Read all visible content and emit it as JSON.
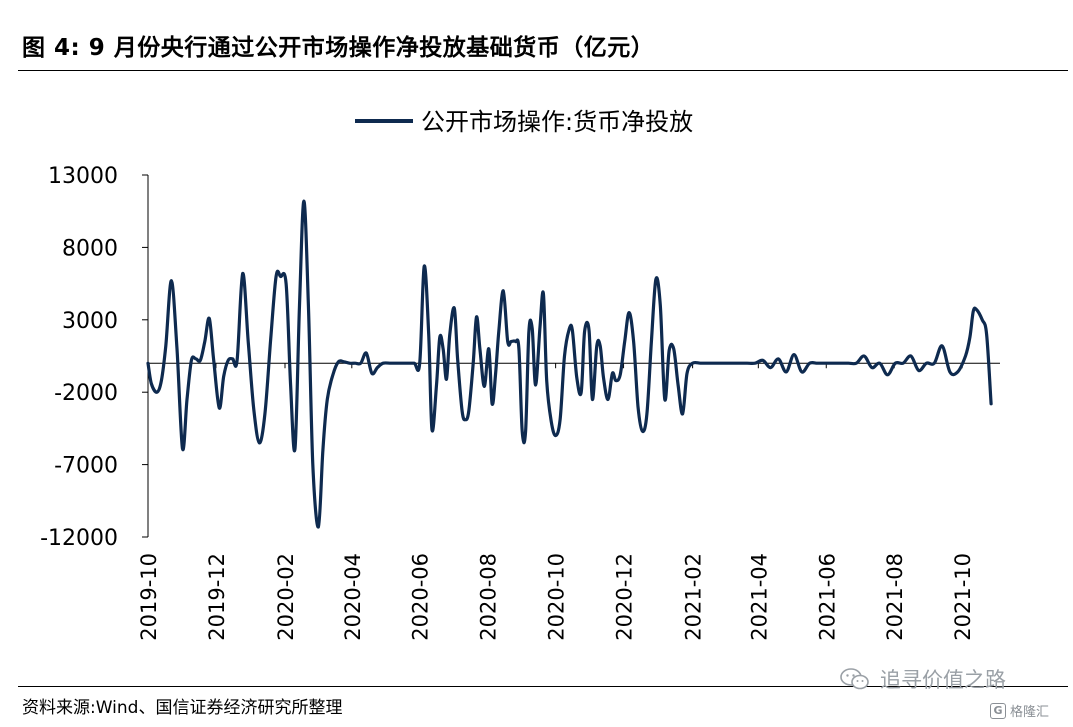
{
  "figure": {
    "title": "图 4:  9 月份央行通过公开市场操作净投放基础货币（亿元）",
    "source": "资料来源:Wind、国信证券经济研究所整理"
  },
  "watermark": {
    "text": "追寻价值之路",
    "icon": "wechat-icon"
  },
  "logo": {
    "text": "格隆汇",
    "icon": "logo-icon"
  },
  "chart_data": {
    "type": "line",
    "title": "",
    "xlabel": "",
    "ylabel": "",
    "ylim": [
      -12000,
      13000
    ],
    "yticks": [
      13000,
      8000,
      3000,
      -2000,
      -7000,
      -12000
    ],
    "x_tick_labels": [
      "2019-10",
      "2019-12",
      "2020-02",
      "2020-04",
      "2020-06",
      "2020-08",
      "2020-10",
      "2020-12",
      "2021-02",
      "2021-04",
      "2021-06",
      "2021-08",
      "2021-10"
    ],
    "legend_position": "top-center",
    "grid": false,
    "series": [
      {
        "name": "公开市场操作:货币净投放",
        "color": "#0e2a4f",
        "points": [
          [
            "2019-10-01",
            0
          ],
          [
            "2019-10-04",
            -1400
          ],
          [
            "2019-10-09",
            -2000
          ],
          [
            "2019-10-13",
            -1200
          ],
          [
            "2019-10-17",
            1200
          ],
          [
            "2019-10-22",
            5700
          ],
          [
            "2019-10-27",
            1000
          ],
          [
            "2019-11-01",
            -5900
          ],
          [
            "2019-11-05",
            -2500
          ],
          [
            "2019-11-09",
            200
          ],
          [
            "2019-11-13",
            300
          ],
          [
            "2019-11-17",
            200
          ],
          [
            "2019-11-21",
            1500
          ],
          [
            "2019-11-25",
            3100
          ],
          [
            "2019-11-29",
            200
          ],
          [
            "2019-12-04",
            -3100
          ],
          [
            "2019-12-08",
            -900
          ],
          [
            "2019-12-12",
            200
          ],
          [
            "2019-12-16",
            300
          ],
          [
            "2019-12-20",
            200
          ],
          [
            "2019-12-25",
            6200
          ],
          [
            "2019-12-30",
            1500
          ],
          [
            "2020-01-04",
            -3200
          ],
          [
            "2020-01-09",
            -5500
          ],
          [
            "2020-01-14",
            -3500
          ],
          [
            "2020-01-19",
            1500
          ],
          [
            "2020-01-24",
            6000
          ],
          [
            "2020-01-28",
            6000
          ],
          [
            "2020-02-02",
            5500
          ],
          [
            "2020-02-06",
            -1500
          ],
          [
            "2020-02-10",
            -5900
          ],
          [
            "2020-02-14",
            4000
          ],
          [
            "2020-02-18",
            11200
          ],
          [
            "2020-02-22",
            4000
          ],
          [
            "2020-02-26",
            -7000
          ],
          [
            "2020-03-02",
            -11300
          ],
          [
            "2020-03-06",
            -6000
          ],
          [
            "2020-03-10",
            -2500
          ],
          [
            "2020-03-15",
            -800
          ],
          [
            "2020-03-20",
            100
          ],
          [
            "2020-03-25",
            100
          ],
          [
            "2020-03-30",
            0
          ],
          [
            "2020-04-04",
            0
          ],
          [
            "2020-04-09",
            0
          ],
          [
            "2020-04-14",
            700
          ],
          [
            "2020-04-19",
            -700
          ],
          [
            "2020-04-24",
            -300
          ],
          [
            "2020-04-29",
            0
          ],
          [
            "2020-05-06",
            0
          ],
          [
            "2020-05-13",
            0
          ],
          [
            "2020-05-20",
            0
          ],
          [
            "2020-05-27",
            0
          ],
          [
            "2020-06-01",
            0
          ],
          [
            "2020-06-05",
            6700
          ],
          [
            "2020-06-09",
            2000
          ],
          [
            "2020-06-12",
            -4600
          ],
          [
            "2020-06-16",
            -1500
          ],
          [
            "2020-06-19",
            1800
          ],
          [
            "2020-06-22",
            1000
          ],
          [
            "2020-06-25",
            -1100
          ],
          [
            "2020-06-28",
            2000
          ],
          [
            "2020-07-02",
            3800
          ],
          [
            "2020-07-05",
            300
          ],
          [
            "2020-07-09",
            -3300
          ],
          [
            "2020-07-12",
            -3900
          ],
          [
            "2020-07-15",
            -3300
          ],
          [
            "2020-07-19",
            0
          ],
          [
            "2020-07-22",
            3200
          ],
          [
            "2020-07-25",
            1000
          ],
          [
            "2020-07-29",
            -1600
          ],
          [
            "2020-08-02",
            1000
          ],
          [
            "2020-08-05",
            -2800
          ],
          [
            "2020-08-08",
            -800
          ],
          [
            "2020-08-11",
            2200
          ],
          [
            "2020-08-15",
            5000
          ],
          [
            "2020-08-19",
            1500
          ],
          [
            "2020-08-22",
            1500
          ],
          [
            "2020-08-26",
            1500
          ],
          [
            "2020-08-29",
            1000
          ],
          [
            "2020-09-01",
            -4700
          ],
          [
            "2020-09-04",
            -4700
          ],
          [
            "2020-09-07",
            2200
          ],
          [
            "2020-09-10",
            2400
          ],
          [
            "2020-09-13",
            -1500
          ],
          [
            "2020-09-17",
            2500
          ],
          [
            "2020-09-20",
            4800
          ],
          [
            "2020-09-23",
            -1200
          ],
          [
            "2020-09-27",
            -4000
          ],
          [
            "2020-10-01",
            -5000
          ],
          [
            "2020-10-05",
            -3900
          ],
          [
            "2020-10-09",
            500
          ],
          [
            "2020-10-13",
            2300
          ],
          [
            "2020-10-16",
            2300
          ],
          [
            "2020-10-20",
            -1000
          ],
          [
            "2020-10-24",
            -2000
          ],
          [
            "2020-10-27",
            2200
          ],
          [
            "2020-10-31",
            2300
          ],
          [
            "2020-11-03",
            -2500
          ],
          [
            "2020-11-07",
            1200
          ],
          [
            "2020-11-10",
            1200
          ],
          [
            "2020-11-13",
            -1000
          ],
          [
            "2020-11-17",
            -2500
          ],
          [
            "2020-11-21",
            -700
          ],
          [
            "2020-11-24",
            -1200
          ],
          [
            "2020-11-28",
            -800
          ],
          [
            "2020-12-02",
            1500
          ],
          [
            "2020-12-06",
            3500
          ],
          [
            "2020-12-10",
            1500
          ],
          [
            "2020-12-14",
            -3000
          ],
          [
            "2020-12-18",
            -4700
          ],
          [
            "2020-12-22",
            -3500
          ],
          [
            "2020-12-26",
            1500
          ],
          [
            "2020-12-30",
            5800
          ],
          [
            "2021-01-03",
            4000
          ],
          [
            "2021-01-07",
            -2500
          ],
          [
            "2021-01-11",
            900
          ],
          [
            "2021-01-15",
            1000
          ],
          [
            "2021-01-19",
            -1500
          ],
          [
            "2021-01-23",
            -3500
          ],
          [
            "2021-01-27",
            -700
          ],
          [
            "2021-02-01",
            0
          ],
          [
            "2021-02-08",
            0
          ],
          [
            "2021-02-15",
            0
          ],
          [
            "2021-02-22",
            0
          ],
          [
            "2021-03-01",
            0
          ],
          [
            "2021-03-08",
            0
          ],
          [
            "2021-03-15",
            0
          ],
          [
            "2021-03-22",
            0
          ],
          [
            "2021-03-29",
            0
          ],
          [
            "2021-04-05",
            200
          ],
          [
            "2021-04-12",
            -300
          ],
          [
            "2021-04-19",
            300
          ],
          [
            "2021-04-26",
            -600
          ],
          [
            "2021-05-03",
            600
          ],
          [
            "2021-05-10",
            -600
          ],
          [
            "2021-05-17",
            0
          ],
          [
            "2021-05-24",
            0
          ],
          [
            "2021-05-31",
            0
          ],
          [
            "2021-06-07",
            0
          ],
          [
            "2021-06-14",
            0
          ],
          [
            "2021-06-21",
            0
          ],
          [
            "2021-06-28",
            0
          ],
          [
            "2021-07-05",
            500
          ],
          [
            "2021-07-12",
            -300
          ],
          [
            "2021-07-19",
            0
          ],
          [
            "2021-07-26",
            -800
          ],
          [
            "2021-08-02",
            0
          ],
          [
            "2021-08-09",
            0
          ],
          [
            "2021-08-16",
            500
          ],
          [
            "2021-08-23",
            -500
          ],
          [
            "2021-08-30",
            0
          ],
          [
            "2021-09-06",
            0
          ],
          [
            "2021-09-13",
            1200
          ],
          [
            "2021-09-20",
            -600
          ],
          [
            "2021-09-27",
            -600
          ],
          [
            "2021-10-04",
            500
          ],
          [
            "2021-10-08",
            1800
          ],
          [
            "2021-10-11",
            3600
          ],
          [
            "2021-10-14",
            3700
          ],
          [
            "2021-10-19",
            3000
          ],
          [
            "2021-10-23",
            2000
          ],
          [
            "2021-10-27",
            -2800
          ]
        ]
      }
    ]
  }
}
